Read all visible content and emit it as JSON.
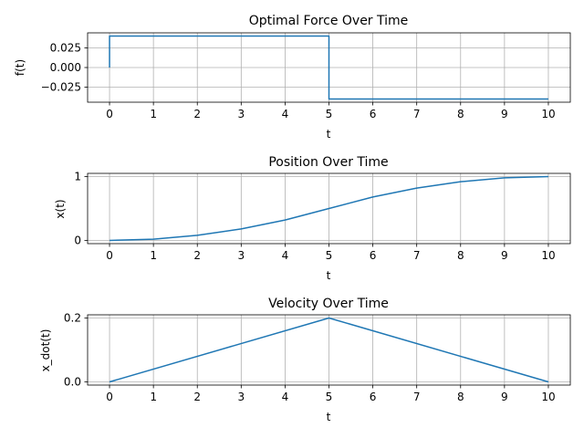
{
  "chart_data": [
    {
      "type": "line",
      "title": "Optimal Force Over Time",
      "xlabel": "t",
      "ylabel": "f(t)",
      "xlim": [
        -0.5,
        10.5
      ],
      "ylim": [
        -0.044,
        0.044
      ],
      "xticks": [
        0,
        1,
        2,
        3,
        4,
        5,
        6,
        7,
        8,
        9,
        10
      ],
      "xtick_labels": [
        "0",
        "1",
        "2",
        "3",
        "4",
        "5",
        "6",
        "7",
        "8",
        "9",
        "10"
      ],
      "yticks": [
        -0.025,
        0.0,
        0.025
      ],
      "ytick_labels": [
        "−0.025",
        "0.000",
        "0.025"
      ],
      "grid": true,
      "color": "#1f77b4",
      "series": [
        {
          "x": [
            0,
            0,
            5,
            5,
            10
          ],
          "y": [
            0.0,
            0.04,
            0.04,
            -0.04,
            -0.04
          ]
        }
      ]
    },
    {
      "type": "line",
      "title": "Position Over Time",
      "xlabel": "t",
      "ylabel": "x(t)",
      "xlim": [
        -0.5,
        10.5
      ],
      "ylim": [
        -0.05,
        1.05
      ],
      "xticks": [
        0,
        1,
        2,
        3,
        4,
        5,
        6,
        7,
        8,
        9,
        10
      ],
      "xtick_labels": [
        "0",
        "1",
        "2",
        "3",
        "4",
        "5",
        "6",
        "7",
        "8",
        "9",
        "10"
      ],
      "yticks": [
        0,
        1
      ],
      "ytick_labels": [
        "0",
        "1"
      ],
      "grid": true,
      "color": "#1f77b4",
      "series": [
        {
          "x": [
            0,
            1,
            2,
            3,
            4,
            5,
            6,
            7,
            8,
            9,
            10
          ],
          "y": [
            0.0,
            0.02,
            0.08,
            0.18,
            0.32,
            0.5,
            0.68,
            0.82,
            0.92,
            0.98,
            1.0
          ]
        }
      ]
    },
    {
      "type": "line",
      "title": "Velocity Over Time",
      "xlabel": "t",
      "ylabel": "x_dot(t)",
      "xlim": [
        -0.5,
        10.5
      ],
      "ylim": [
        -0.01,
        0.21
      ],
      "xticks": [
        0,
        1,
        2,
        3,
        4,
        5,
        6,
        7,
        8,
        9,
        10
      ],
      "xtick_labels": [
        "0",
        "1",
        "2",
        "3",
        "4",
        "5",
        "6",
        "7",
        "8",
        "9",
        "10"
      ],
      "yticks": [
        0.0,
        0.2
      ],
      "ytick_labels": [
        "0.0",
        "0.2"
      ],
      "grid": true,
      "color": "#1f77b4",
      "series": [
        {
          "x": [
            0,
            5,
            10
          ],
          "y": [
            0.0,
            0.2,
            0.0
          ]
        }
      ]
    }
  ]
}
